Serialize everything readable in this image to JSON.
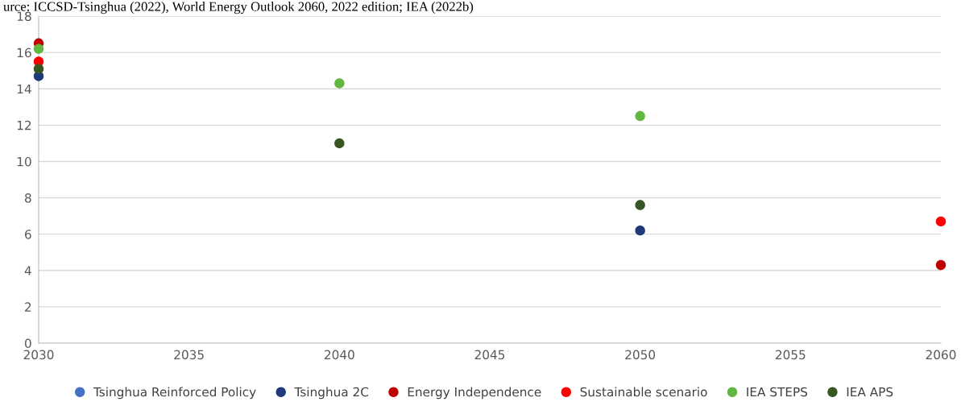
{
  "chart_data": {
    "type": "scatter",
    "annotations": [
      "urce: ICCSD-Tsinghua (2022), World Energy Outlook 2060, 2022 edition; IEA (2022b)"
    ],
    "series": [
      {
        "name": "Tsinghua Reinforced Policy",
        "color": "#4472c4"
      },
      {
        "name": "Tsinghua 2C",
        "color": "#1f3a7a",
        "x": [
          2030,
          2050
        ],
        "values": [
          14.7,
          6.2
        ]
      },
      {
        "name": "Energy Independence",
        "color": "#c00000",
        "x": [
          2030,
          2060
        ],
        "values": [
          16.5,
          4.3
        ]
      },
      {
        "name": "Sustainable scenario",
        "color": "#ff0000",
        "x": [
          2030,
          2060
        ],
        "values": [
          15.5,
          6.7
        ]
      },
      {
        "name": "IEA STEPS",
        "color": "#62b743",
        "x": [
          2030,
          2040,
          2050
        ],
        "values": [
          16.2,
          14.3,
          12.5
        ]
      },
      {
        "name": "IEA APS",
        "color": "#375623",
        "x": [
          2030,
          2040,
          2050
        ],
        "values": [
          15.1,
          11.0,
          7.6
        ]
      }
    ],
    "xlim": [
      2030,
      2060
    ],
    "xticks": [
      2030,
      2035,
      2040,
      2045,
      2050,
      2055,
      2060
    ],
    "ylim": [
      0,
      18
    ],
    "yticks": [
      0,
      2,
      4,
      6,
      8,
      10,
      12,
      14,
      16,
      18
    ],
    "grid": "y",
    "legend": "bottom",
    "marker": "circle"
  }
}
